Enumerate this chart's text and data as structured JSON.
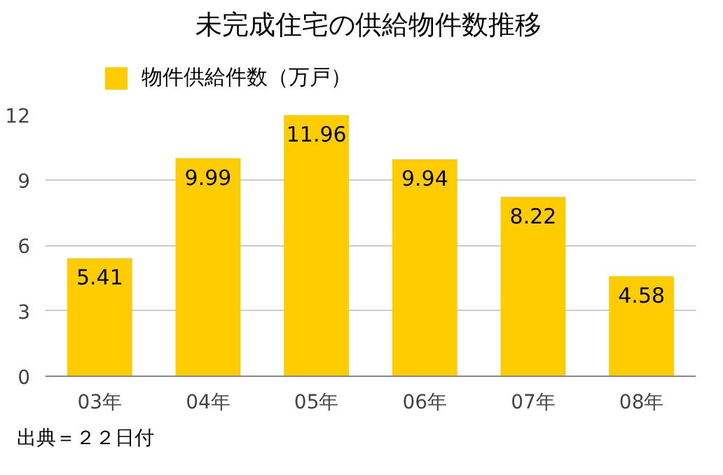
{
  "chart_data": {
    "type": "bar",
    "title": "未完成住宅の供給物件数推移",
    "categories": [
      "03年",
      "04年",
      "05年",
      "06年",
      "07年",
      "08年"
    ],
    "series": [
      {
        "name": "物件供給件数（万戸）",
        "color": "#ffcc00",
        "values": [
          5.41,
          9.99,
          11.96,
          9.94,
          8.22,
          4.58
        ]
      }
    ],
    "ylim": [
      0,
      12
    ],
    "yticks": [
      0,
      3,
      6,
      9,
      12
    ],
    "grid": "y",
    "legend": "top left",
    "data_labels": true,
    "annotations": [
      "出典＝２２日付"
    ]
  }
}
